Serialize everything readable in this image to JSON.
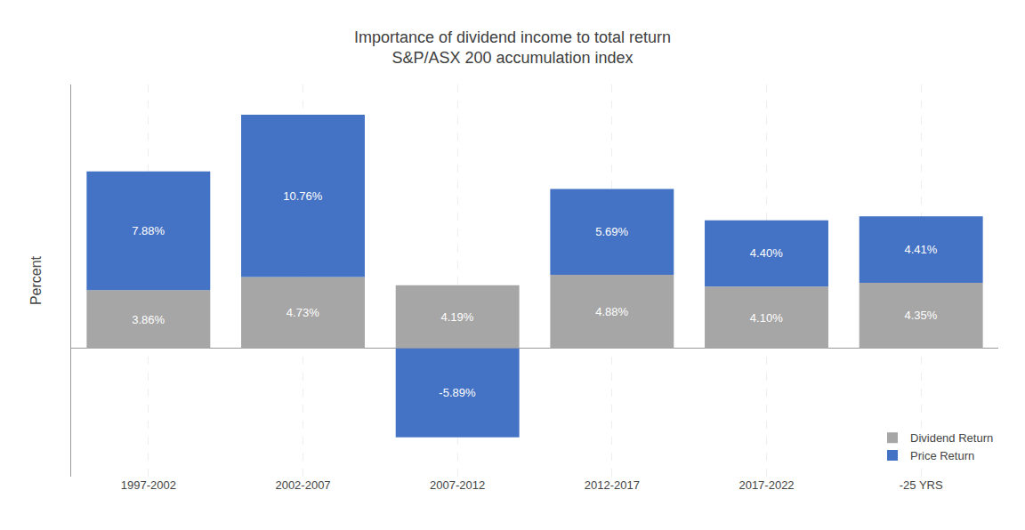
{
  "chart_data": {
    "type": "bar",
    "title": "Importance of dividend income to total return",
    "subtitle": "S&P/ASX 200 accumulation index",
    "categories": [
      "1997-2002",
      "2002-2007",
      "2007-2012",
      "2012-2017",
      "2017-2022",
      "-25 YRS"
    ],
    "series": [
      {
        "name": "Dividend Return",
        "color": "#a6a6a6",
        "values": [
          3.86,
          4.73,
          4.19,
          4.88,
          4.1,
          4.35
        ],
        "value_labels": [
          "3.86%",
          "4.73%",
          "4.19%",
          "4.88%",
          "4.10%",
          "4.35%"
        ]
      },
      {
        "name": "Price Return",
        "color": "#4472C4",
        "values": [
          7.88,
          10.76,
          -5.89,
          5.69,
          4.4,
          4.41
        ],
        "value_labels": [
          "7.88%",
          "10.76%",
          "-5.89%",
          "5.69%",
          "4.40%",
          "4.41%"
        ]
      }
    ],
    "ylabel": "Percent",
    "ylim": [
      -8.5,
      17.5
    ],
    "stacked": true,
    "data_labels": true,
    "tick_labels": "x",
    "grid": "x",
    "legend": "lower right"
  }
}
